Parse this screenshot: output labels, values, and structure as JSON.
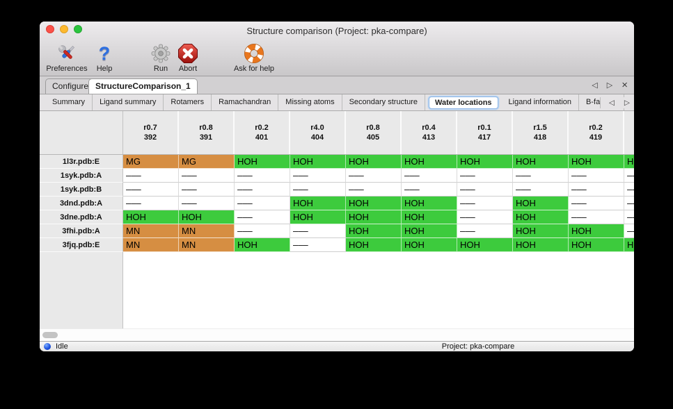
{
  "window": {
    "title": "Structure comparison (Project: pka-compare)"
  },
  "toolbar": {
    "items": [
      {
        "label": "Preferences",
        "icon": "tools-icon"
      },
      {
        "label": "Help",
        "icon": "question-mark-icon"
      },
      {
        "label": "Run",
        "icon": "gear-icon"
      },
      {
        "label": "Abort",
        "icon": "stop-x-icon"
      },
      {
        "label": "Ask for help",
        "icon": "lifebuoy-icon"
      }
    ]
  },
  "tabs": {
    "items": [
      {
        "label": "Configure",
        "selected": false
      },
      {
        "label": "StructureComparison_1",
        "selected": true
      }
    ]
  },
  "subtabs": {
    "items": [
      "Summary",
      "Ligand summary",
      "Rotamers",
      "Ramachandran",
      "Missing atoms",
      "Secondary structure",
      "Water locations",
      "Ligand information",
      "B-factors"
    ],
    "selected": "Water locations"
  },
  "table": {
    "columns": [
      {
        "line1": "r0.7",
        "line2": "392"
      },
      {
        "line1": "r0.8",
        "line2": "391"
      },
      {
        "line1": "r0.2",
        "line2": "401"
      },
      {
        "line1": "r4.0",
        "line2": "404"
      },
      {
        "line1": "r0.8",
        "line2": "405"
      },
      {
        "line1": "r0.4",
        "line2": "413"
      },
      {
        "line1": "r0.1",
        "line2": "417"
      },
      {
        "line1": "r1.5",
        "line2": "418"
      },
      {
        "line1": "r0.2",
        "line2": "419"
      },
      {
        "line1": "",
        "line2": ""
      }
    ],
    "rows": [
      {
        "label": "1l3r.pdb:E",
        "cells": [
          {
            "text": "MG",
            "kind": "metal"
          },
          {
            "text": "MG",
            "kind": "metal"
          },
          {
            "text": "HOH",
            "kind": "water"
          },
          {
            "text": "HOH",
            "kind": "water"
          },
          {
            "text": "HOH",
            "kind": "water"
          },
          {
            "text": "HOH",
            "kind": "water"
          },
          {
            "text": "HOH",
            "kind": "water"
          },
          {
            "text": "HOH",
            "kind": "water"
          },
          {
            "text": "HOH",
            "kind": "water"
          },
          {
            "text": "HOH",
            "kind": "water"
          }
        ]
      },
      {
        "label": "1syk.pdb:A",
        "cells": [
          {
            "text": "–––",
            "kind": "none"
          },
          {
            "text": "–––",
            "kind": "none"
          },
          {
            "text": "–––",
            "kind": "none"
          },
          {
            "text": "–––",
            "kind": "none"
          },
          {
            "text": "–––",
            "kind": "none"
          },
          {
            "text": "–––",
            "kind": "none"
          },
          {
            "text": "–––",
            "kind": "none"
          },
          {
            "text": "–––",
            "kind": "none"
          },
          {
            "text": "–––",
            "kind": "none"
          },
          {
            "text": "–––",
            "kind": "none"
          }
        ]
      },
      {
        "label": "1syk.pdb:B",
        "cells": [
          {
            "text": "–––",
            "kind": "none"
          },
          {
            "text": "–––",
            "kind": "none"
          },
          {
            "text": "–––",
            "kind": "none"
          },
          {
            "text": "–––",
            "kind": "none"
          },
          {
            "text": "–––",
            "kind": "none"
          },
          {
            "text": "–––",
            "kind": "none"
          },
          {
            "text": "–––",
            "kind": "none"
          },
          {
            "text": "–––",
            "kind": "none"
          },
          {
            "text": "–––",
            "kind": "none"
          },
          {
            "text": "–––",
            "kind": "none"
          }
        ]
      },
      {
        "label": "3dnd.pdb:A",
        "cells": [
          {
            "text": "–––",
            "kind": "none"
          },
          {
            "text": "–––",
            "kind": "none"
          },
          {
            "text": "–––",
            "kind": "none"
          },
          {
            "text": "HOH",
            "kind": "water"
          },
          {
            "text": "HOH",
            "kind": "water"
          },
          {
            "text": "HOH",
            "kind": "water"
          },
          {
            "text": "–––",
            "kind": "none"
          },
          {
            "text": "HOH",
            "kind": "water"
          },
          {
            "text": "–––",
            "kind": "none"
          },
          {
            "text": "–––",
            "kind": "none"
          }
        ]
      },
      {
        "label": "3dne.pdb:A",
        "cells": [
          {
            "text": "HOH",
            "kind": "water"
          },
          {
            "text": "HOH",
            "kind": "water"
          },
          {
            "text": "–––",
            "kind": "none"
          },
          {
            "text": "HOH",
            "kind": "water"
          },
          {
            "text": "HOH",
            "kind": "water"
          },
          {
            "text": "HOH",
            "kind": "water"
          },
          {
            "text": "–––",
            "kind": "none"
          },
          {
            "text": "HOH",
            "kind": "water"
          },
          {
            "text": "–––",
            "kind": "none"
          },
          {
            "text": "–––",
            "kind": "none"
          }
        ]
      },
      {
        "label": "3fhi.pdb:A",
        "cells": [
          {
            "text": "MN",
            "kind": "metal"
          },
          {
            "text": "MN",
            "kind": "metal"
          },
          {
            "text": "–––",
            "kind": "none"
          },
          {
            "text": "–––",
            "kind": "none"
          },
          {
            "text": "HOH",
            "kind": "water"
          },
          {
            "text": "HOH",
            "kind": "water"
          },
          {
            "text": "–––",
            "kind": "none"
          },
          {
            "text": "HOH",
            "kind": "water"
          },
          {
            "text": "HOH",
            "kind": "water"
          },
          {
            "text": "–––",
            "kind": "none"
          }
        ]
      },
      {
        "label": "3fjq.pdb:E",
        "cells": [
          {
            "text": "MN",
            "kind": "metal"
          },
          {
            "text": "MN",
            "kind": "metal"
          },
          {
            "text": "HOH",
            "kind": "water"
          },
          {
            "text": "–––",
            "kind": "none"
          },
          {
            "text": "HOH",
            "kind": "water"
          },
          {
            "text": "HOH",
            "kind": "water"
          },
          {
            "text": "HOH",
            "kind": "water"
          },
          {
            "text": "HOH",
            "kind": "water"
          },
          {
            "text": "HOH",
            "kind": "water"
          },
          {
            "text": "HOH",
            "kind": "water"
          }
        ]
      }
    ]
  },
  "statusbar": {
    "state": "Idle",
    "project_label": "Project: pka-compare"
  },
  "controls": {
    "prev_arrow": "◁",
    "next_arrow": "▷",
    "close_x": "×"
  },
  "colors": {
    "water_green": "#3dcb3d",
    "metal_orange": "#d68e42"
  }
}
